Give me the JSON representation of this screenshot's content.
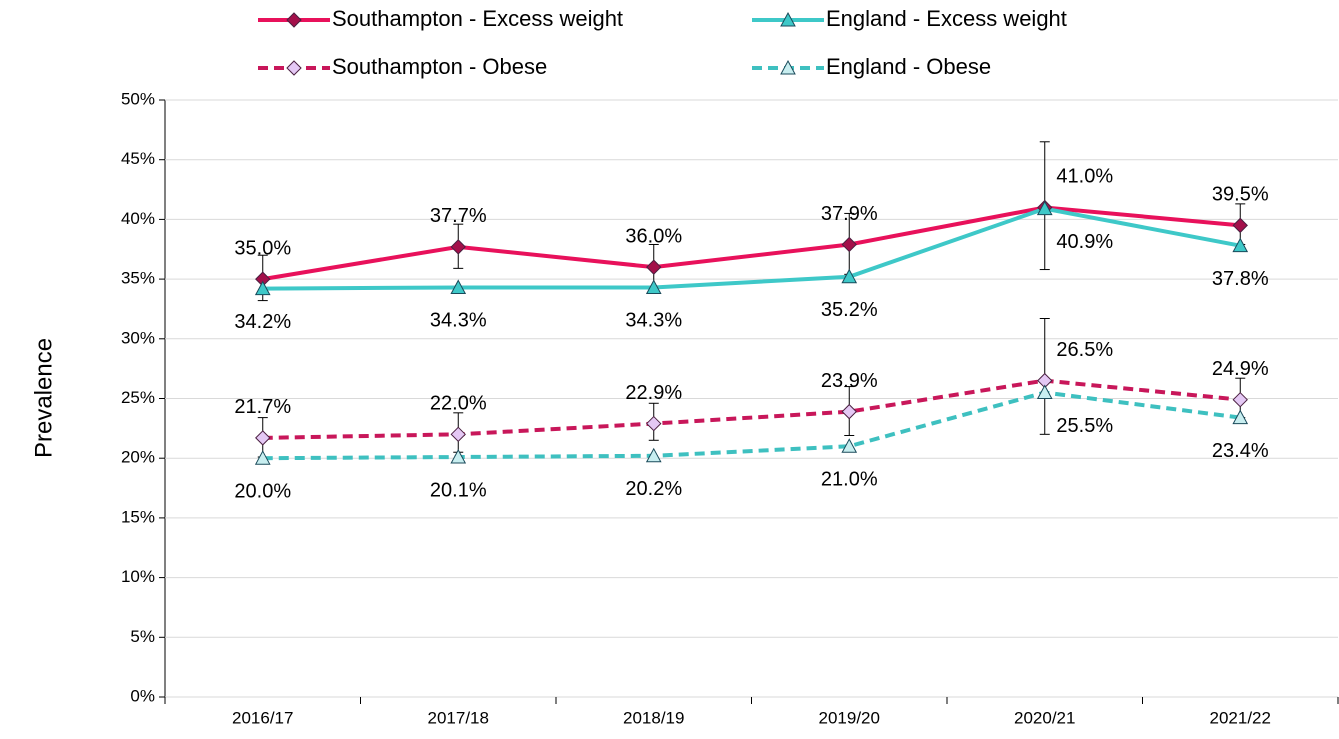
{
  "chart_data": {
    "type": "line",
    "y_label": "Prevalence",
    "categories": [
      "2016/17",
      "2017/18",
      "2018/19",
      "2019/20",
      "2020/21",
      "2021/22"
    ],
    "ylim": [
      0,
      50
    ],
    "yticks": [
      {
        "value": 0,
        "label": "0%"
      },
      {
        "value": 5,
        "label": "5%"
      },
      {
        "value": 10,
        "label": "10%"
      },
      {
        "value": 15,
        "label": "15%"
      },
      {
        "value": 20,
        "label": "20%"
      },
      {
        "value": 25,
        "label": "25%"
      },
      {
        "value": 30,
        "label": "30%"
      },
      {
        "value": 35,
        "label": "35%"
      },
      {
        "value": 40,
        "label": "40%"
      },
      {
        "value": 45,
        "label": "45%"
      },
      {
        "value": 50,
        "label": "50%"
      }
    ],
    "series": [
      {
        "name": "Southampton - Excess weight",
        "color": "#e8115b",
        "marker_fill": "#a3104a",
        "marker": "diamond",
        "line_style": "solid",
        "values": [
          35.0,
          37.7,
          36.0,
          37.9,
          41.0,
          39.5
        ],
        "value_labels": [
          "35.0%",
          "37.7%",
          "36.0%",
          "37.9%",
          "41.0%",
          "39.5%"
        ],
        "error_upper": [
          37.0,
          39.6,
          37.9,
          40.5,
          46.5,
          41.3
        ],
        "error_lower": [
          33.2,
          35.9,
          34.3,
          35.4,
          35.8,
          37.9
        ]
      },
      {
        "name": "England - Excess weight",
        "color": "#3ec8c8",
        "marker_fill": "#3ec8c8",
        "marker": "triangle",
        "line_style": "solid",
        "values": [
          34.2,
          34.3,
          34.3,
          35.2,
          40.9,
          37.8
        ],
        "value_labels": [
          "34.2%",
          "34.3%",
          "34.3%",
          "35.2%",
          "40.9%",
          "37.8%"
        ]
      },
      {
        "name": "Southampton - Obese",
        "color": "#c8175a",
        "marker_fill": "#e4c8f4",
        "marker": "diamond",
        "line_style": "dashed",
        "values": [
          21.7,
          22.0,
          22.9,
          23.9,
          26.5,
          24.9
        ],
        "value_labels": [
          "21.7%",
          "22.0%",
          "22.9%",
          "23.9%",
          "26.5%",
          "24.9%"
        ],
        "error_upper": [
          23.4,
          23.8,
          24.6,
          26.0,
          31.7,
          26.7
        ],
        "error_lower": [
          20.1,
          20.5,
          21.5,
          21.9,
          22.0,
          23.4
        ]
      },
      {
        "name": "England - Obese",
        "color": "#3ec0c0",
        "marker_fill": "#c8eef0",
        "marker": "triangle",
        "line_style": "dashed",
        "values": [
          20.0,
          20.1,
          20.2,
          21.0,
          25.5,
          23.4
        ],
        "value_labels": [
          "20.0%",
          "20.1%",
          "20.2%",
          "21.0%",
          "25.5%",
          "23.4%"
        ]
      }
    ]
  }
}
